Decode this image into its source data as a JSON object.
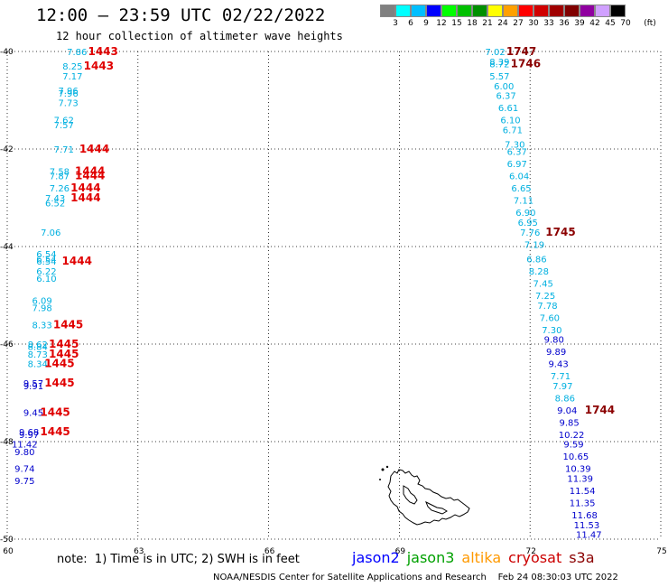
{
  "header": {
    "title": "12:00 – 23:59 UTC 02/22/2022",
    "subtitle": "12 hour collection of altimeter wave heights"
  },
  "scale": {
    "unit": "(ft)",
    "colors": [
      "#808080",
      "#00ffff",
      "#00bfff",
      "#0000ff",
      "#00ff00",
      "#00c000",
      "#009000",
      "#ffff00",
      "#ffa000",
      "#ff0000",
      "#d00000",
      "#a00000",
      "#800000",
      "#9000a0",
      "#d0a0ff",
      "#000000"
    ],
    "labels": [
      "3",
      "6",
      "9",
      "12",
      "15",
      "18",
      "21",
      "24",
      "27",
      "30",
      "33",
      "36",
      "39",
      "42",
      "45",
      "70"
    ]
  },
  "axes": {
    "lat_labels": [
      {
        "text": "-40",
        "lat": -40
      },
      {
        "text": "-42",
        "lat": -42
      },
      {
        "text": "-44",
        "lat": -44
      },
      {
        "text": "-46",
        "lat": -46
      },
      {
        "text": "-48",
        "lat": -48
      },
      {
        "text": "-50",
        "lat": -50
      }
    ],
    "lon_labels": [
      {
        "text": "60",
        "lon": 60
      },
      {
        "text": "63",
        "lon": 63
      },
      {
        "text": "66",
        "lon": 66
      },
      {
        "text": "69",
        "lon": 69
      },
      {
        "text": "72",
        "lon": 72
      },
      {
        "text": "75",
        "lon": 75
      }
    ]
  },
  "track_left": [
    {
      "v": "7.86",
      "lat": -40.0,
      "lon": 61.6
    },
    {
      "v": "8.25",
      "lat": -40.3,
      "lon": 61.5
    },
    {
      "v": "7.17",
      "lat": -40.5,
      "lon": 61.5
    },
    {
      "v": "7.96",
      "lat": -40.8,
      "lon": 61.4
    },
    {
      "v": "7.96",
      "lat": -40.85,
      "lon": 61.4
    },
    {
      "v": "7.73",
      "lat": -41.05,
      "lon": 61.4
    },
    {
      "v": "7.62",
      "lat": -41.4,
      "lon": 61.3
    },
    {
      "v": "7.57",
      "lat": -41.5,
      "lon": 61.3
    },
    {
      "v": "7.71",
      "lat": -42.0,
      "lon": 61.3
    },
    {
      "v": "7.58",
      "lat": -42.45,
      "lon": 61.2
    },
    {
      "v": "7.87",
      "lat": -42.55,
      "lon": 61.2
    },
    {
      "v": "7.26",
      "lat": -42.8,
      "lon": 61.2
    },
    {
      "v": "7.43",
      "lat": -43.0,
      "lon": 61.1
    },
    {
      "v": "6.52",
      "lat": -43.1,
      "lon": 61.1
    },
    {
      "v": "7.06",
      "lat": -43.7,
      "lon": 61.0
    },
    {
      "v": "6.54",
      "lat": -44.15,
      "lon": 60.9
    },
    {
      "v": "6.54",
      "lat": -44.25,
      "lon": 60.9
    },
    {
      "v": "6.54",
      "lat": -44.3,
      "lon": 60.9
    },
    {
      "v": "6.22",
      "lat": -44.5,
      "lon": 60.9
    },
    {
      "v": "6.10",
      "lat": -44.65,
      "lon": 60.9
    },
    {
      "v": "6.09",
      "lat": -45.1,
      "lon": 60.8
    },
    {
      "v": "7.98",
      "lat": -45.25,
      "lon": 60.8
    },
    {
      "v": "8.33",
      "lat": -45.6,
      "lon": 60.8
    },
    {
      "v": "8.62",
      "lat": -46.0,
      "lon": 60.7
    },
    {
      "v": "8.84",
      "lat": -46.05,
      "lon": 60.7
    },
    {
      "v": "8.73",
      "lat": -46.2,
      "lon": 60.7
    },
    {
      "v": "8.34",
      "lat": -46.4,
      "lon": 60.7
    },
    {
      "v": "9.57",
      "lat": -46.8,
      "lon": 60.6
    },
    {
      "v": "9.91",
      "lat": -46.85,
      "lon": 60.6
    },
    {
      "v": "9.45",
      "lat": -47.4,
      "lon": 60.6
    },
    {
      "v": "9.68",
      "lat": -47.8,
      "lon": 60.5
    },
    {
      "v": "9.97",
      "lat": -47.85,
      "lon": 60.5
    },
    {
      "v": "11.42",
      "lat": -48.05,
      "lon": 60.4
    },
    {
      "v": "9.80",
      "lat": -48.2,
      "lon": 60.4
    },
    {
      "v": "9.74",
      "lat": -48.55,
      "lon": 60.4
    },
    {
      "v": "9.75",
      "lat": -48.8,
      "lon": 60.4
    }
  ],
  "track_right": [
    {
      "v": "7.02",
      "lat": -40.0,
      "lon": 71.2
    },
    {
      "v": "8.39",
      "lat": -40.2,
      "lon": 71.3
    },
    {
      "v": "8.72",
      "lat": -40.25,
      "lon": 71.3
    },
    {
      "v": "5.57",
      "lat": -40.5,
      "lon": 71.3
    },
    {
      "v": "6.00",
      "lat": -40.7,
      "lon": 71.4
    },
    {
      "v": "6.37",
      "lat": -40.9,
      "lon": 71.45
    },
    {
      "v": "6.61",
      "lat": -41.15,
      "lon": 71.5
    },
    {
      "v": "6.10",
      "lat": -41.4,
      "lon": 71.55
    },
    {
      "v": "6.71",
      "lat": -41.6,
      "lon": 71.6
    },
    {
      "v": "7.30",
      "lat": -41.9,
      "lon": 71.65
    },
    {
      "v": "6.37",
      "lat": -42.05,
      "lon": 71.7
    },
    {
      "v": "6.97",
      "lat": -42.3,
      "lon": 71.7
    },
    {
      "v": "6.04",
      "lat": -42.55,
      "lon": 71.75
    },
    {
      "v": "6.65",
      "lat": -42.8,
      "lon": 71.8
    },
    {
      "v": "7.11",
      "lat": -43.05,
      "lon": 71.85
    },
    {
      "v": "6.90",
      "lat": -43.3,
      "lon": 71.9
    },
    {
      "v": "6.95",
      "lat": -43.5,
      "lon": 71.95
    },
    {
      "v": "7.76",
      "lat": -43.7,
      "lon": 72.0
    },
    {
      "v": "7.19",
      "lat": -43.95,
      "lon": 72.1
    },
    {
      "v": "6.86",
      "lat": -44.25,
      "lon": 72.15
    },
    {
      "v": "8.28",
      "lat": -44.5,
      "lon": 72.2
    },
    {
      "v": "7.45",
      "lat": -44.75,
      "lon": 72.3
    },
    {
      "v": "7.25",
      "lat": -45.0,
      "lon": 72.35
    },
    {
      "v": "7.78",
      "lat": -45.2,
      "lon": 72.4
    },
    {
      "v": "7.60",
      "lat": -45.45,
      "lon": 72.45
    },
    {
      "v": "7.30",
      "lat": -45.7,
      "lon": 72.5
    },
    {
      "v": "9.80",
      "lat": -45.9,
      "lon": 72.55
    },
    {
      "v": "9.89",
      "lat": -46.15,
      "lon": 72.6
    },
    {
      "v": "9.43",
      "lat": -46.4,
      "lon": 72.65
    },
    {
      "v": "7.71",
      "lat": -46.65,
      "lon": 72.7
    },
    {
      "v": "7.97",
      "lat": -46.85,
      "lon": 72.75
    },
    {
      "v": "8.86",
      "lat": -47.1,
      "lon": 72.8
    },
    {
      "v": "9.04",
      "lat": -47.35,
      "lon": 72.85
    },
    {
      "v": "9.85",
      "lat": -47.6,
      "lon": 72.9
    },
    {
      "v": "10.22",
      "lat": -47.85,
      "lon": 72.95
    },
    {
      "v": "9.59",
      "lat": -48.05,
      "lon": 73.0
    },
    {
      "v": "10.65",
      "lat": -48.3,
      "lon": 73.05
    },
    {
      "v": "10.39",
      "lat": -48.55,
      "lon": 73.1
    },
    {
      "v": "11.39",
      "lat": -48.75,
      "lon": 73.15
    },
    {
      "v": "11.54",
      "lat": -49.0,
      "lon": 73.2
    },
    {
      "v": "11.35",
      "lat": -49.25,
      "lon": 73.2
    },
    {
      "v": "11.68",
      "lat": -49.5,
      "lon": 73.25
    },
    {
      "v": "11.53",
      "lat": -49.7,
      "lon": 73.3
    },
    {
      "v": "11.47",
      "lat": -49.9,
      "lon": 73.35
    }
  ],
  "time_labels": [
    {
      "text": "1443",
      "lat": -40.0,
      "lon": 62.2,
      "color": "#e00000"
    },
    {
      "text": "1443",
      "lat": -40.3,
      "lon": 62.1,
      "color": "#e00000"
    },
    {
      "text": "1444",
      "lat": -42.0,
      "lon": 62.0,
      "color": "#e00000"
    },
    {
      "text": "1444",
      "lat": -42.45,
      "lon": 61.9,
      "color": "#e00000"
    },
    {
      "text": "1444",
      "lat": -42.55,
      "lon": 61.9,
      "color": "#e00000"
    },
    {
      "text": "1444",
      "lat": -42.8,
      "lon": 61.8,
      "color": "#e00000"
    },
    {
      "text": "1444",
      "lat": -43.0,
      "lon": 61.8,
      "color": "#e00000"
    },
    {
      "text": "1444",
      "lat": -44.3,
      "lon": 61.6,
      "color": "#e00000"
    },
    {
      "text": "1445",
      "lat": -45.6,
      "lon": 61.4,
      "color": "#e00000"
    },
    {
      "text": "1445",
      "lat": -46.0,
      "lon": 61.3,
      "color": "#e00000"
    },
    {
      "text": "1445",
      "lat": -46.2,
      "lon": 61.3,
      "color": "#e00000"
    },
    {
      "text": "1445",
      "lat": -46.4,
      "lon": 61.2,
      "color": "#e00000"
    },
    {
      "text": "1445",
      "lat": -46.8,
      "lon": 61.2,
      "color": "#e00000"
    },
    {
      "text": "1445",
      "lat": -47.4,
      "lon": 61.1,
      "color": "#e00000"
    },
    {
      "text": "1445",
      "lat": -47.8,
      "lon": 61.1,
      "color": "#e00000"
    },
    {
      "text": "1747",
      "lat": -40.0,
      "lon": 71.8,
      "color": "#8b0000"
    },
    {
      "text": "1746",
      "lat": -40.25,
      "lon": 71.9,
      "color": "#8b0000"
    },
    {
      "text": "1745",
      "lat": -43.7,
      "lon": 72.7,
      "color": "#8b0000"
    },
    {
      "text": "1744",
      "lat": -47.35,
      "lon": 73.6,
      "color": "#8b0000"
    }
  ],
  "footer": {
    "note": "note:  1) Time is in UTC; 2) SWH is in feet",
    "credit": "NOAA/NESDIS Center for Satellite Applications and Research    Feb 24 08:30:03 UTC 2022",
    "satellites": [
      {
        "name": "jason2",
        "color": "#0000ff"
      },
      {
        "name": "jason3",
        "color": "#00a000"
      },
      {
        "name": "altika",
        "color": "#ff9900"
      },
      {
        "name": "cryosat",
        "color": "#cc0000"
      },
      {
        "name": "s3a",
        "color": "#8b0000"
      }
    ]
  }
}
